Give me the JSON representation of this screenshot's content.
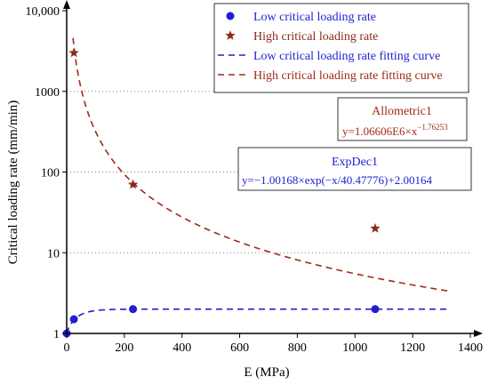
{
  "chart_data": {
    "type": "scatter",
    "xlabel": "E (MPa)",
    "ylabel": "Critical loading rate (mm/min)",
    "x_ticks": [
      0,
      200,
      400,
      600,
      800,
      1000,
      1200,
      1400
    ],
    "y_ticks": [
      {
        "value": 1,
        "label": "1"
      },
      {
        "value": 10,
        "label": "10"
      },
      {
        "value": 100,
        "label": "100"
      },
      {
        "value": 1000,
        "label": "1000"
      },
      {
        "value": 10000,
        "label": "10,000"
      }
    ],
    "xlim": [
      0,
      1400
    ],
    "ylim": [
      1,
      10000
    ],
    "y_scale": "log",
    "grid": "horizontal dotted",
    "legend_position": "top-right",
    "series": [
      {
        "name": "Low critical loading rate",
        "kind": "points",
        "marker": "circle",
        "color": "#1f1fd1",
        "points": [
          [
            0,
            1
          ],
          [
            25,
            1.5
          ],
          [
            230,
            2
          ],
          [
            1070,
            2
          ]
        ]
      },
      {
        "name": "High critical loading rate",
        "kind": "points",
        "marker": "star",
        "color": "#8b2a18",
        "points": [
          [
            25,
            3000
          ],
          [
            230,
            70
          ],
          [
            1070,
            20
          ]
        ]
      },
      {
        "name": "Low critical loading rate fitting curve",
        "kind": "curve",
        "style": "dashed",
        "color": "#1f1fd1",
        "model": "expdec1",
        "params": {
          "A": -1.00168,
          "t": 40.47776,
          "y0": 2.00164
        },
        "x_range": [
          0,
          1330
        ]
      },
      {
        "name": "High critical loading rate fitting curve",
        "kind": "curve",
        "style": "dashed",
        "color": "#a02a1a",
        "model": "allometric1",
        "params": {
          "a": 1066060,
          "b": -1.76253
        },
        "x_range": [
          22,
          1330
        ]
      }
    ],
    "annotations": [
      {
        "title": "Allometric1",
        "formula": "y=1.06606E6×x",
        "superscript": "−1.76253",
        "color": "#a02a1a"
      },
      {
        "title": "ExpDec1",
        "formula": "y=−1.00168×exp(−x/40.47776)+2.00164",
        "color": "#1f1fd1"
      }
    ]
  }
}
